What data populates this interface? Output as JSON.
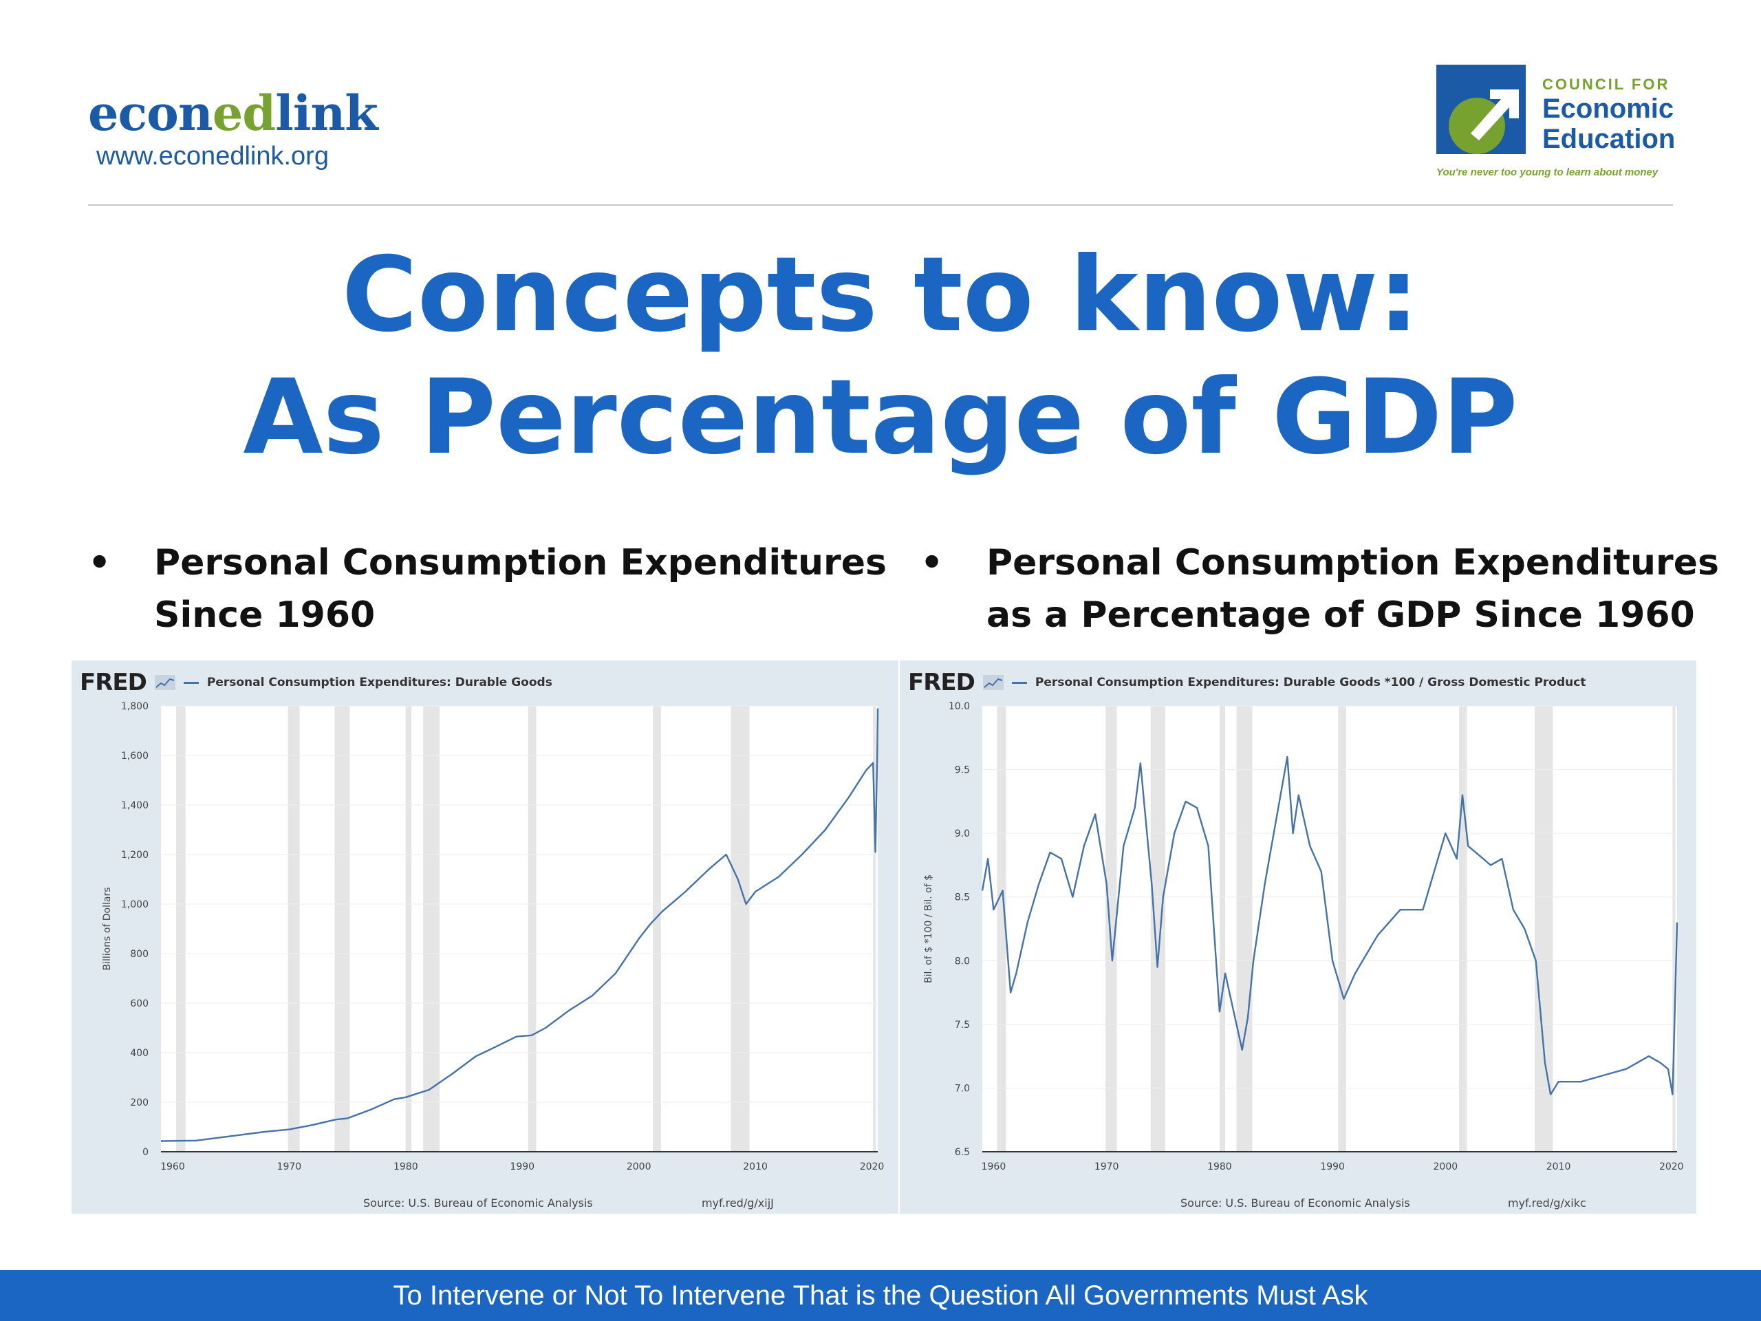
{
  "header": {
    "logo_left": {
      "brand_prefix": "econ",
      "brand_highlight": "ed",
      "brand_suffix": "link",
      "url": "www.econedlink.org"
    },
    "logo_right": {
      "council": "COUNCIL FOR",
      "line1": "Economic",
      "line2": "Education",
      "tagline": "You're never too young to learn about money"
    }
  },
  "title": {
    "line1": "Concepts to know:",
    "line2": "As Percentage of GDP"
  },
  "bullets": [
    {
      "symbol": "•",
      "line1": "Personal Consumption Expenditures",
      "line2": "Since 1960"
    },
    {
      "symbol": "•",
      "line1": "Personal Consumption Expenditures",
      "line2": "as a Percentage of GDP Since 1960"
    }
  ],
  "footer": {
    "text": "To Intervene or Not To Intervene That is the Question All Governments Must Ask"
  },
  "colors": {
    "title": "#1a66c2",
    "brand": "#1b5aa6",
    "accent_green": "#78a22f",
    "series": "#4572a7",
    "recession": "#e5e5e5",
    "panel_bg": "#e1e9f0"
  },
  "chart_data": [
    {
      "type": "line",
      "brand": "FRED",
      "series_name": "Personal Consumption Expenditures: Durable Goods",
      "ylabel": "Billions of Dollars",
      "ylim": [
        0,
        1800
      ],
      "yticks": [
        0,
        200,
        400,
        600,
        800,
        1000,
        1200,
        1400,
        1600,
        1800
      ],
      "ytick_labels": [
        "0",
        "200",
        "400",
        "600",
        "800",
        "1,000",
        "1,200",
        "1,400",
        "1,600",
        "1,800"
      ],
      "xlim": [
        1959,
        2020.5
      ],
      "xticks": [
        1960,
        1970,
        1980,
        1990,
        2000,
        2010,
        2020
      ],
      "recessions": [
        [
          1960.3,
          1961.1
        ],
        [
          1969.9,
          1970.9
        ],
        [
          1973.9,
          1975.2
        ],
        [
          1980.0,
          1980.5
        ],
        [
          1981.5,
          1982.9
        ],
        [
          1990.5,
          1991.2
        ],
        [
          2001.2,
          2001.9
        ],
        [
          2007.9,
          2009.5
        ],
        [
          2020.1,
          2020.3
        ]
      ],
      "series": [
        {
          "name": "Personal Consumption Expenditures: Durable Goods",
          "x": [
            1959,
            1962,
            1965,
            1968,
            1970,
            1972,
            1974,
            1975,
            1977,
            1979,
            1980,
            1981,
            1982,
            1984,
            1986,
            1988,
            1989.5,
            1990.8,
            1992,
            1994,
            1996,
            1998,
            2000,
            2001,
            2002,
            2004,
            2006,
            2007.5,
            2008.5,
            2009.2,
            2010,
            2012,
            2014,
            2016,
            2018,
            2019.5,
            2020.1,
            2020.3,
            2020.45,
            2020.5
          ],
          "values": [
            43,
            45,
            63,
            81,
            90,
            108,
            130,
            135,
            170,
            212,
            220,
            235,
            250,
            315,
            385,
            430,
            465,
            470,
            500,
            570,
            630,
            720,
            860,
            920,
            970,
            1050,
            1140,
            1200,
            1100,
            1000,
            1050,
            1110,
            1200,
            1300,
            1430,
            1540,
            1570,
            1210,
            1600,
            1790
          ]
        }
      ],
      "source": "Source: U.S. Bureau of Economic Analysis",
      "link": "myf.red/g/xijJ"
    },
    {
      "type": "line",
      "brand": "FRED",
      "series_name": "Personal Consumption Expenditures: Durable Goods *100 / Gross Domestic Product",
      "ylabel": "Bil. of $ *100 / Bil. of $",
      "ylim": [
        6.5,
        10.0
      ],
      "yticks": [
        6.5,
        7.0,
        7.5,
        8.0,
        8.5,
        9.0,
        9.5,
        10.0
      ],
      "ytick_labels": [
        "6.5",
        "7.0",
        "7.5",
        "8.0",
        "8.5",
        "9.0",
        "9.5",
        "10.0"
      ],
      "xlim": [
        1959,
        2020.5
      ],
      "xticks": [
        1960,
        1970,
        1980,
        1990,
        2000,
        2010,
        2020
      ],
      "recessions": [
        [
          1960.3,
          1961.1
        ],
        [
          1969.9,
          1970.9
        ],
        [
          1973.9,
          1975.2
        ],
        [
          1980.0,
          1980.5
        ],
        [
          1981.5,
          1982.9
        ],
        [
          1990.5,
          1991.2
        ],
        [
          2001.2,
          2001.9
        ],
        [
          2007.9,
          2009.5
        ],
        [
          2020.1,
          2020.3
        ]
      ],
      "series": [
        {
          "name": "Personal Consumption Expenditures: Durable Goods *100 / Gross Domestic Product",
          "x": [
            1959,
            1959.5,
            1960,
            1960.8,
            1961.5,
            1962,
            1963,
            1964,
            1965,
            1966,
            1967,
            1968,
            1969,
            1970,
            1970.5,
            1971.5,
            1972.5,
            1973,
            1974,
            1974.5,
            1975,
            1976,
            1977,
            1978,
            1979,
            1980,
            1980.5,
            1981,
            1982,
            1982.5,
            1983,
            1984,
            1985,
            1986,
            1986.5,
            1987,
            1988,
            1989,
            1990,
            1991,
            1992,
            1994,
            1996,
            1998,
            1999,
            2000,
            2001,
            2001.5,
            2002,
            2004,
            2005,
            2006,
            2007,
            2008,
            2008.8,
            2009.3,
            2010,
            2012,
            2014,
            2016,
            2017,
            2018,
            2019,
            2019.7,
            2020.1,
            2020.3,
            2020.5
          ],
          "values": [
            8.55,
            8.8,
            8.4,
            8.55,
            7.75,
            7.9,
            8.3,
            8.6,
            8.85,
            8.8,
            8.5,
            8.9,
            9.15,
            8.6,
            8.0,
            8.9,
            9.2,
            9.55,
            8.6,
            7.95,
            8.5,
            9.0,
            9.25,
            9.2,
            8.9,
            7.6,
            7.9,
            7.7,
            7.3,
            7.55,
            8.0,
            8.6,
            9.1,
            9.6,
            9.0,
            9.3,
            8.9,
            8.7,
            8.0,
            7.7,
            7.9,
            8.2,
            8.4,
            8.4,
            8.7,
            9.0,
            8.8,
            9.3,
            8.9,
            8.75,
            8.8,
            8.4,
            8.25,
            8.0,
            7.2,
            6.95,
            7.05,
            7.05,
            7.1,
            7.15,
            7.2,
            7.25,
            7.2,
            7.15,
            6.95,
            7.6,
            8.3
          ]
        }
      ],
      "source": "Source: U.S. Bureau of Economic Analysis",
      "link": "myf.red/g/xikc"
    }
  ]
}
